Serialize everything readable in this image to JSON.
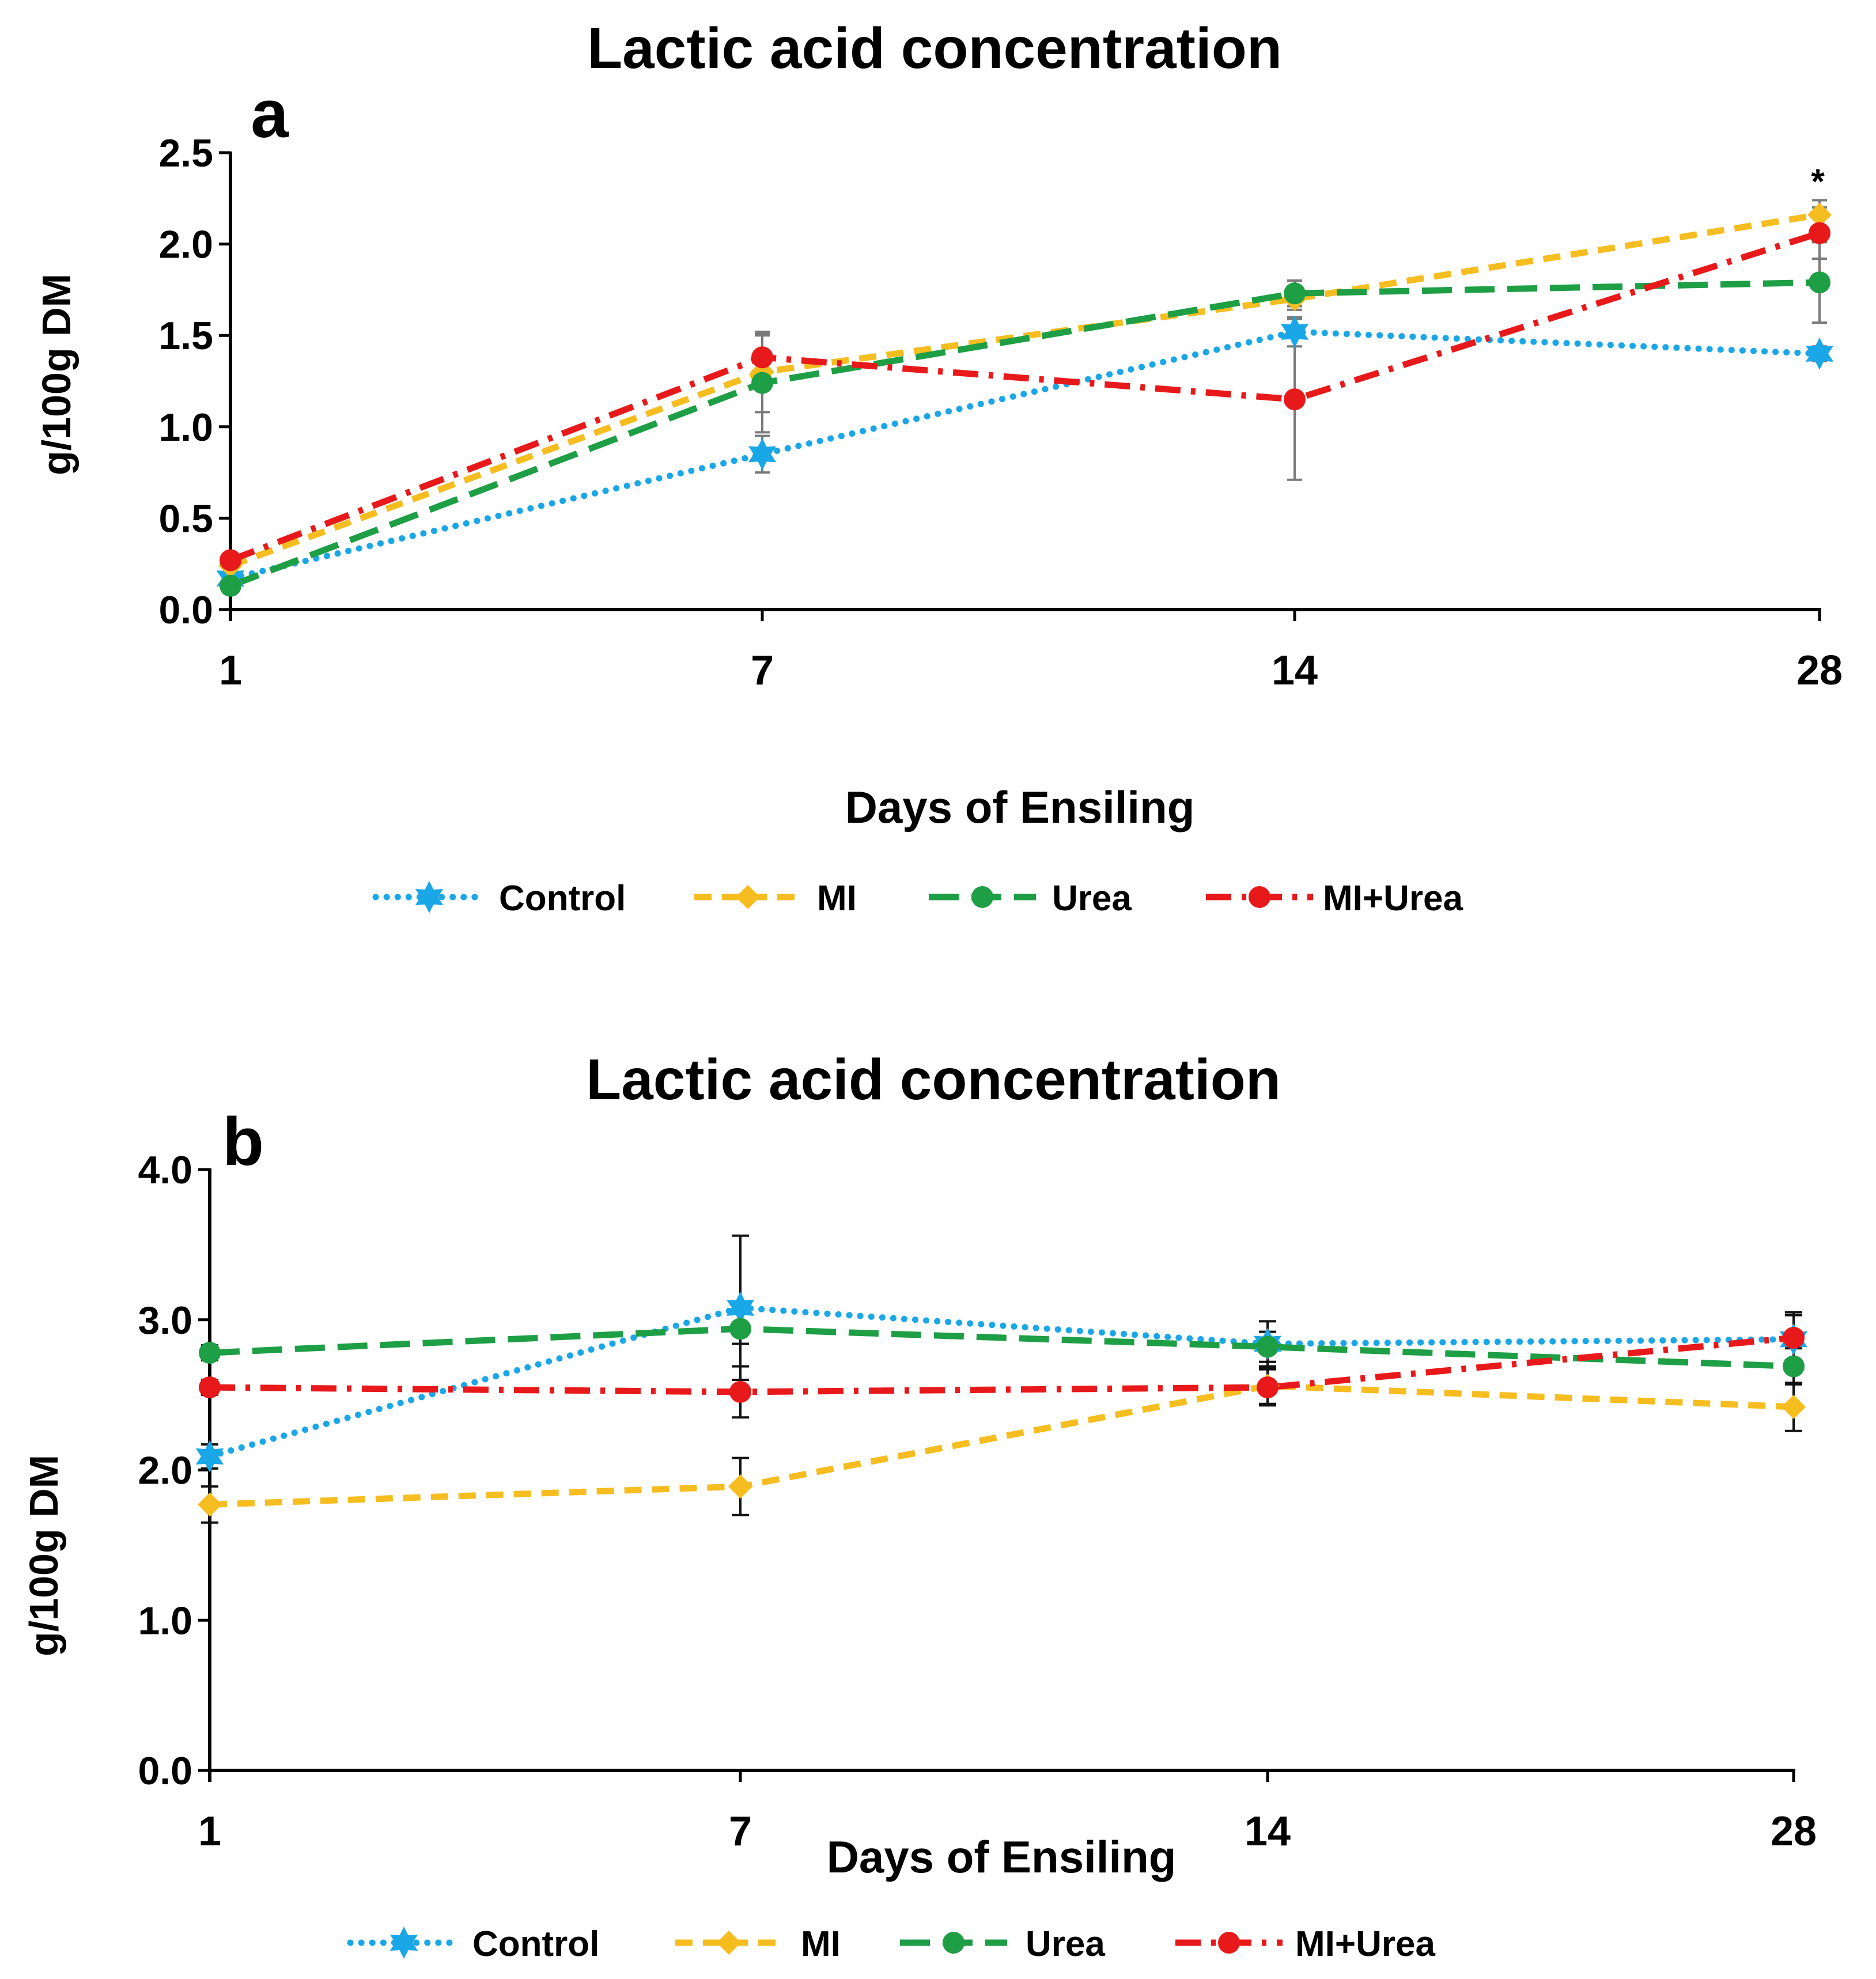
{
  "colors": {
    "Control": "#1aa7e8",
    "MI": "#f5bd1f",
    "Urea": "#1e9e45",
    "MI+Urea": "#e8191a",
    "axis": "#000000",
    "errorbar_a": "#7a7a7a",
    "errorbar_b": "#111111"
  },
  "legend": {
    "items": [
      {
        "name": "Control",
        "marker": "star"
      },
      {
        "name": "MI",
        "marker": "diamond"
      },
      {
        "name": "Urea",
        "marker": "circle"
      },
      {
        "name": "MI+Urea",
        "marker": "circle"
      }
    ]
  },
  "chart_data": [
    {
      "type": "line",
      "panel_label": "a",
      "title": "Lactic acid concentration",
      "xlabel": "Days of Ensiling",
      "ylabel": "g/100g DM",
      "categories": [
        "1",
        "7",
        "14",
        "28"
      ],
      "ylim": [
        0,
        2.5
      ],
      "yticks": [
        "0.0",
        "0.5",
        "1.0",
        "1.5",
        "2.0",
        "2.5"
      ],
      "annotation": {
        "text": "*",
        "category": "28"
      },
      "series": [
        {
          "name": "Control",
          "values": [
            0.17,
            0.85,
            1.52,
            1.4
          ],
          "errors": [
            0.03,
            0.1,
            0.08,
            0.04
          ],
          "dash": "dotted",
          "marker": "star"
        },
        {
          "name": "MI",
          "values": [
            0.24,
            1.3,
            1.7,
            2.16
          ],
          "errors": [
            0.03,
            0.22,
            0.06,
            0.08
          ],
          "dash": "dashed",
          "marker": "diamond"
        },
        {
          "name": "Urea",
          "values": [
            0.13,
            1.24,
            1.73,
            1.79
          ],
          "errors": [
            0.03,
            0.27,
            0.07,
            0.22
          ],
          "dash": "longdash",
          "marker": "circle"
        },
        {
          "name": "MI+Urea",
          "values": [
            0.27,
            1.38,
            1.15,
            2.06
          ],
          "errors": [
            0.03,
            0.12,
            0.44,
            0.14
          ],
          "dash": "dashdot",
          "marker": "circle"
        }
      ]
    },
    {
      "type": "line",
      "panel_label": "b",
      "title": "Lactic acid concentration",
      "xlabel": "Days of Ensiling",
      "ylabel": "g/100g DM",
      "categories": [
        "1",
        "7",
        "14",
        "28"
      ],
      "ylim": [
        0,
        4.0
      ],
      "yticks": [
        "0.0",
        "1.0",
        "2.0",
        "3.0",
        "4.0"
      ],
      "series": [
        {
          "name": "Control",
          "values": [
            2.09,
            3.08,
            2.84,
            2.87
          ],
          "errors": [
            0.08,
            0.48,
            0.15,
            0.18
          ],
          "dash": "dotted",
          "marker": "star"
        },
        {
          "name": "MI",
          "values": [
            1.77,
            1.89,
            2.56,
            2.42
          ],
          "errors": [
            0.12,
            0.19,
            0.12,
            0.16
          ],
          "dash": "dashed",
          "marker": "diamond"
        },
        {
          "name": "Urea",
          "values": [
            2.78,
            2.94,
            2.82,
            2.69
          ],
          "errors": [
            0.05,
            0.1,
            0.1,
            0.12
          ],
          "dash": "longdash",
          "marker": "circle"
        },
        {
          "name": "MI+Urea",
          "values": [
            2.55,
            2.52,
            2.55,
            2.88
          ],
          "errors": [
            0.05,
            0.17,
            0.12,
            0.15
          ],
          "dash": "dashdot",
          "marker": "circle"
        }
      ]
    }
  ]
}
